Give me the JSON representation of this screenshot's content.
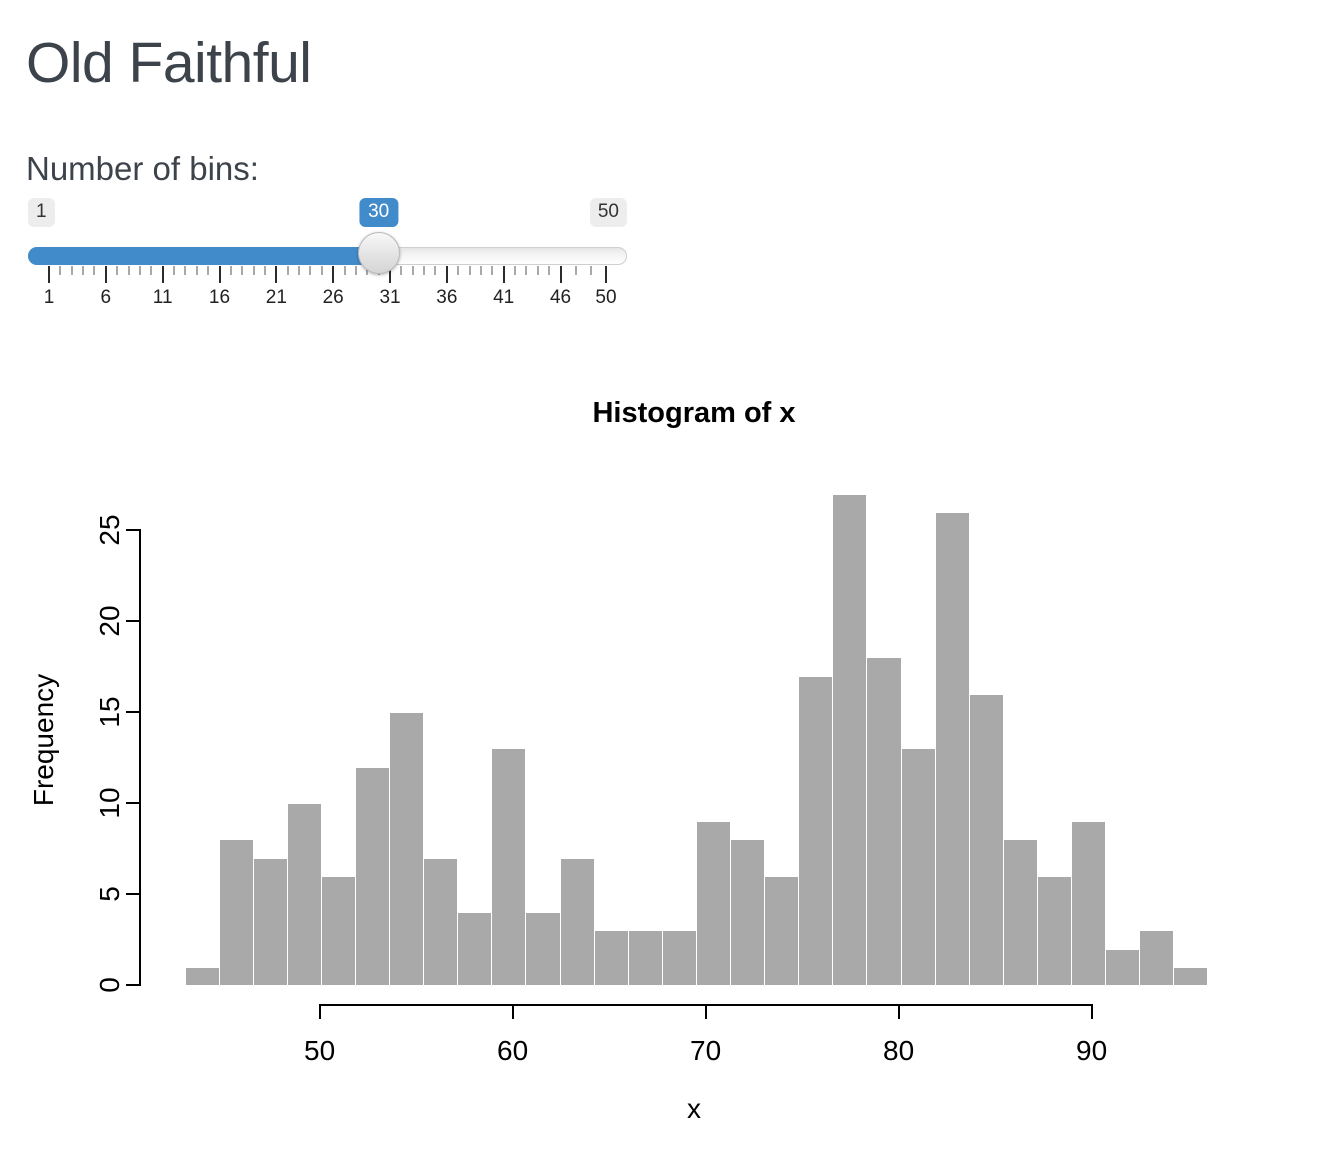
{
  "app": {
    "title": "Old Faithful"
  },
  "slider": {
    "label": "Number of bins:",
    "min": 1,
    "max": 50,
    "value": 30,
    "min_label": "1",
    "max_label": "50",
    "value_label": "30",
    "grid_major_values": [
      1,
      6,
      11,
      16,
      21,
      26,
      31,
      36,
      41,
      46,
      50
    ],
    "grid_labels": [
      "1",
      "6",
      "11",
      "16",
      "21",
      "26",
      "31",
      "36",
      "41",
      "46",
      "50"
    ],
    "accent_color": "#428bca"
  },
  "chart_data": {
    "type": "bar",
    "subtype": "histogram",
    "title": "Histogram of x",
    "xlabel": "x",
    "ylabel": "Frequency",
    "bin_start": 43,
    "bin_end": 96,
    "bin_count": 30,
    "values": [
      1,
      8,
      7,
      10,
      6,
      12,
      15,
      7,
      4,
      13,
      4,
      7,
      3,
      3,
      3,
      9,
      8,
      6,
      17,
      27,
      18,
      13,
      26,
      16,
      8,
      6,
      9,
      2,
      3,
      1
    ],
    "x_ticks": [
      50,
      60,
      70,
      80,
      90
    ],
    "y_ticks": [
      0,
      5,
      10,
      15,
      20,
      25
    ],
    "ylim": [
      0,
      27
    ],
    "grid": false,
    "legend": "none",
    "bar_color": "#a9a9a9",
    "bar_border_color": "#ffffff",
    "axis_color": "#000000"
  }
}
